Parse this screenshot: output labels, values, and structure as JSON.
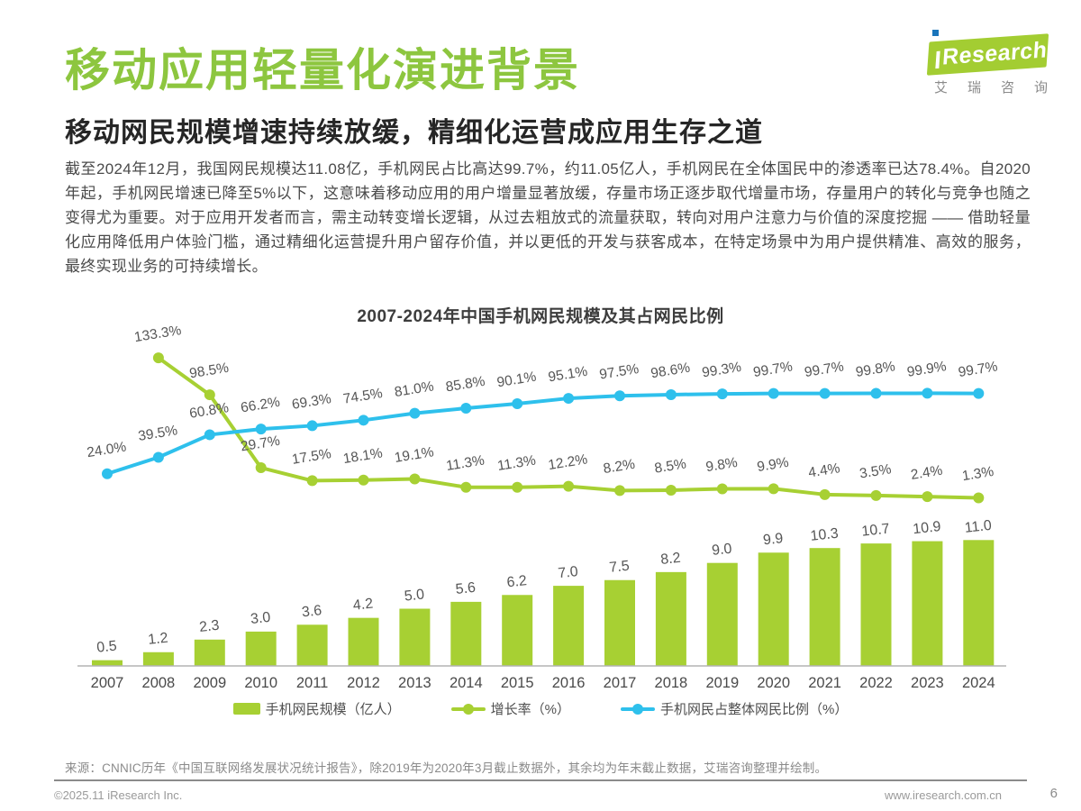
{
  "logo": {
    "brand": "Research",
    "subtext": "艾瑞咨询"
  },
  "header": {
    "title": "移动应用轻量化演进背景",
    "subtitle": "移动网民规模增速持续放缓，精细化运营成应用生存之道"
  },
  "body": {
    "paragraph": "截至2024年12月，我国网民规模达11.08亿，手机网民占比高达99.7%，约11.05亿人，手机网民在全体国民中的渗透率已达78.4%。自2020年起，手机网民增速已降至5%以下，这意味着移动应用的用户增量显著放缓，存量市场正逐步取代增量市场，存量用户的转化与竞争也随之变得尤为重要。对于应用开发者而言，需主动转变增长逻辑，从过去粗放式的流量获取，转向对用户注意力与价值的深度挖掘 —— 借助轻量化应用降低用户体验门槛，通过精细化运营提升用户留存价值，并以更低的开发与获客成本，在特定场景中为用户提供精准、高效的服务，最终实现业务的可持续增长。"
  },
  "chart_data": {
    "type": "bar",
    "subtype": "bar+line combo",
    "title": "2007-2024年中国手机网民规模及其占网民比例",
    "categories": [
      "2007",
      "2008",
      "2009",
      "2010",
      "2011",
      "2012",
      "2013",
      "2014",
      "2015",
      "2016",
      "2017",
      "2018",
      "2019",
      "2020",
      "2021",
      "2022",
      "2023",
      "2024"
    ],
    "series": [
      {
        "name": "手机网民规模（亿人）",
        "type": "bar",
        "color": "#a7d033",
        "values": [
          0.5,
          1.2,
          2.3,
          3.0,
          3.6,
          4.2,
          5.0,
          5.6,
          6.2,
          7.0,
          7.5,
          8.2,
          9.0,
          9.9,
          10.3,
          10.7,
          10.9,
          11.0
        ]
      },
      {
        "name": "增长率（%）",
        "type": "line",
        "color": "#a7d033",
        "values": [
          null,
          133.3,
          98.5,
          29.7,
          17.5,
          18.1,
          19.1,
          11.3,
          11.3,
          12.2,
          8.2,
          8.5,
          9.8,
          9.9,
          4.4,
          3.5,
          2.4,
          1.3
        ]
      },
      {
        "name": "手机网民占整体网民比例（%）",
        "type": "line",
        "color": "#2ec0ec",
        "values": [
          24.0,
          39.5,
          60.8,
          66.2,
          69.3,
          74.5,
          81.0,
          85.8,
          90.1,
          95.1,
          97.5,
          98.6,
          99.3,
          99.7,
          99.7,
          99.8,
          99.9,
          99.7
        ]
      }
    ],
    "xlabel": "",
    "ylabel": "",
    "y_axis_visible": false,
    "grid": false,
    "legend_position": "bottom",
    "bar_axis_range": [
      0,
      12
    ],
    "line_axis_range": [
      0,
      140
    ]
  },
  "source": {
    "text": "来源：CNNIC历年《中国互联网络发展状况统计报告》，除2019年为2020年3月截止数据外，其余均为年末截止数据，艾瑞咨询整理并绘制。"
  },
  "footer": {
    "copyright": "©2025.11 iResearch Inc.",
    "website": "www.iresearch.com.cn",
    "page_number": "6"
  },
  "colors": {
    "title_green": "#8dc63f",
    "logo_green": "#a3cd32",
    "logo_dot_blue": "#1a75bb",
    "chart_green": "#a7d033",
    "chart_blue": "#2ec0ec",
    "axis_gray": "#b3b3b3",
    "label_gray": "#565656"
  }
}
